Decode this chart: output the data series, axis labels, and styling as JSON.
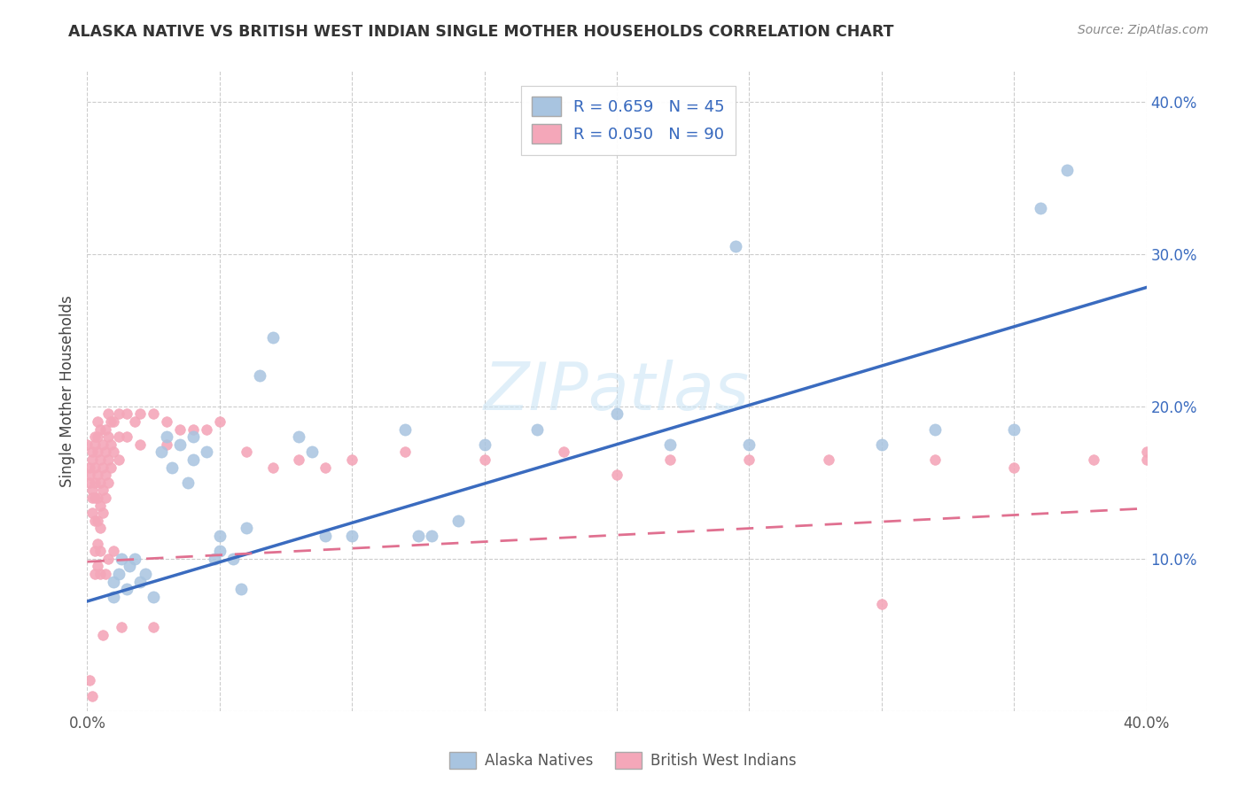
{
  "title": "ALASKA NATIVE VS BRITISH WEST INDIAN SINGLE MOTHER HOUSEHOLDS CORRELATION CHART",
  "source": "Source: ZipAtlas.com",
  "ylabel": "Single Mother Households",
  "xlim": [
    0.0,
    0.4
  ],
  "ylim": [
    0.0,
    0.42
  ],
  "xtick_positions": [
    0.0,
    0.05,
    0.1,
    0.15,
    0.2,
    0.25,
    0.3,
    0.35,
    0.4
  ],
  "xtick_labels_show": [
    "0.0%",
    "",
    "",
    "",
    "",
    "",
    "",
    "",
    "40.0%"
  ],
  "ytick_positions": [
    0.0,
    0.1,
    0.2,
    0.3,
    0.4
  ],
  "ytick_labels": [
    "",
    "10.0%",
    "20.0%",
    "30.0%",
    "40.0%"
  ],
  "alaska_R": 0.659,
  "alaska_N": 45,
  "bwi_R": 0.05,
  "bwi_N": 90,
  "alaska_color": "#a8c4e0",
  "bwi_color": "#f4a7b9",
  "alaska_line_color": "#3a6bbf",
  "bwi_line_color": "#e07090",
  "watermark": "ZIPatlas",
  "alaska_line": [
    [
      0.0,
      0.072
    ],
    [
      0.4,
      0.278
    ]
  ],
  "bwi_line": [
    [
      0.0,
      0.098
    ],
    [
      0.4,
      0.133
    ]
  ],
  "alaska_scatter": [
    [
      0.01,
      0.075
    ],
    [
      0.01,
      0.085
    ],
    [
      0.012,
      0.09
    ],
    [
      0.013,
      0.1
    ],
    [
      0.015,
      0.08
    ],
    [
      0.016,
      0.095
    ],
    [
      0.018,
      0.1
    ],
    [
      0.02,
      0.085
    ],
    [
      0.022,
      0.09
    ],
    [
      0.025,
      0.075
    ],
    [
      0.028,
      0.17
    ],
    [
      0.03,
      0.18
    ],
    [
      0.032,
      0.16
    ],
    [
      0.035,
      0.175
    ],
    [
      0.038,
      0.15
    ],
    [
      0.04,
      0.18
    ],
    [
      0.04,
      0.165
    ],
    [
      0.045,
      0.17
    ],
    [
      0.048,
      0.1
    ],
    [
      0.05,
      0.105
    ],
    [
      0.05,
      0.115
    ],
    [
      0.055,
      0.1
    ],
    [
      0.058,
      0.08
    ],
    [
      0.06,
      0.12
    ],
    [
      0.065,
      0.22
    ],
    [
      0.07,
      0.245
    ],
    [
      0.08,
      0.18
    ],
    [
      0.085,
      0.17
    ],
    [
      0.09,
      0.115
    ],
    [
      0.1,
      0.115
    ],
    [
      0.12,
      0.185
    ],
    [
      0.125,
      0.115
    ],
    [
      0.13,
      0.115
    ],
    [
      0.14,
      0.125
    ],
    [
      0.15,
      0.175
    ],
    [
      0.17,
      0.185
    ],
    [
      0.2,
      0.195
    ],
    [
      0.22,
      0.175
    ],
    [
      0.245,
      0.305
    ],
    [
      0.25,
      0.175
    ],
    [
      0.3,
      0.175
    ],
    [
      0.32,
      0.185
    ],
    [
      0.35,
      0.185
    ],
    [
      0.36,
      0.33
    ],
    [
      0.37,
      0.355
    ]
  ],
  "bwi_scatter": [
    [
      0.0,
      0.175
    ],
    [
      0.001,
      0.16
    ],
    [
      0.001,
      0.155
    ],
    [
      0.001,
      0.15
    ],
    [
      0.002,
      0.17
    ],
    [
      0.002,
      0.165
    ],
    [
      0.002,
      0.145
    ],
    [
      0.002,
      0.14
    ],
    [
      0.002,
      0.13
    ],
    [
      0.003,
      0.18
    ],
    [
      0.003,
      0.175
    ],
    [
      0.003,
      0.16
    ],
    [
      0.003,
      0.15
    ],
    [
      0.003,
      0.14
    ],
    [
      0.003,
      0.125
    ],
    [
      0.003,
      0.105
    ],
    [
      0.003,
      0.09
    ],
    [
      0.004,
      0.19
    ],
    [
      0.004,
      0.18
    ],
    [
      0.004,
      0.17
    ],
    [
      0.004,
      0.155
    ],
    [
      0.004,
      0.14
    ],
    [
      0.004,
      0.125
    ],
    [
      0.004,
      0.11
    ],
    [
      0.004,
      0.095
    ],
    [
      0.005,
      0.185
    ],
    [
      0.005,
      0.165
    ],
    [
      0.005,
      0.15
    ],
    [
      0.005,
      0.135
    ],
    [
      0.005,
      0.12
    ],
    [
      0.005,
      0.105
    ],
    [
      0.005,
      0.09
    ],
    [
      0.006,
      0.175
    ],
    [
      0.006,
      0.16
    ],
    [
      0.006,
      0.145
    ],
    [
      0.006,
      0.13
    ],
    [
      0.006,
      0.05
    ],
    [
      0.007,
      0.185
    ],
    [
      0.007,
      0.17
    ],
    [
      0.007,
      0.155
    ],
    [
      0.007,
      0.14
    ],
    [
      0.007,
      0.09
    ],
    [
      0.008,
      0.195
    ],
    [
      0.008,
      0.18
    ],
    [
      0.008,
      0.165
    ],
    [
      0.008,
      0.15
    ],
    [
      0.008,
      0.1
    ],
    [
      0.009,
      0.19
    ],
    [
      0.009,
      0.175
    ],
    [
      0.009,
      0.16
    ],
    [
      0.01,
      0.19
    ],
    [
      0.01,
      0.17
    ],
    [
      0.01,
      0.105
    ],
    [
      0.012,
      0.195
    ],
    [
      0.012,
      0.18
    ],
    [
      0.012,
      0.165
    ],
    [
      0.013,
      0.055
    ],
    [
      0.015,
      0.195
    ],
    [
      0.015,
      0.18
    ],
    [
      0.018,
      0.19
    ],
    [
      0.02,
      0.195
    ],
    [
      0.02,
      0.175
    ],
    [
      0.025,
      0.195
    ],
    [
      0.025,
      0.055
    ],
    [
      0.03,
      0.19
    ],
    [
      0.03,
      0.175
    ],
    [
      0.035,
      0.185
    ],
    [
      0.04,
      0.185
    ],
    [
      0.045,
      0.185
    ],
    [
      0.05,
      0.19
    ],
    [
      0.06,
      0.17
    ],
    [
      0.07,
      0.16
    ],
    [
      0.08,
      0.165
    ],
    [
      0.09,
      0.16
    ],
    [
      0.1,
      0.165
    ],
    [
      0.12,
      0.17
    ],
    [
      0.15,
      0.165
    ],
    [
      0.18,
      0.17
    ],
    [
      0.2,
      0.155
    ],
    [
      0.22,
      0.165
    ],
    [
      0.25,
      0.165
    ],
    [
      0.28,
      0.165
    ],
    [
      0.3,
      0.07
    ],
    [
      0.32,
      0.165
    ],
    [
      0.35,
      0.16
    ],
    [
      0.38,
      0.165
    ],
    [
      0.4,
      0.165
    ],
    [
      0.4,
      0.17
    ],
    [
      0.002,
      0.01
    ],
    [
      0.001,
      0.02
    ]
  ]
}
